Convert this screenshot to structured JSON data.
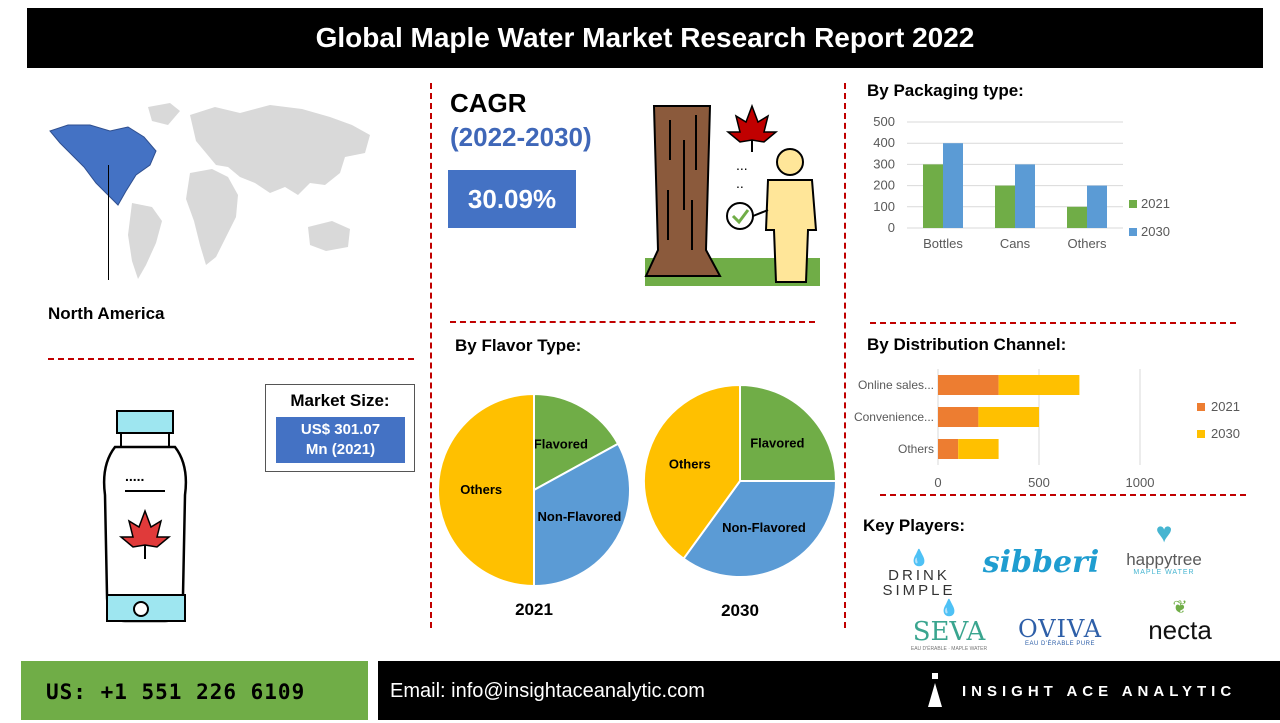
{
  "title": "Global Maple Water Market Research Report 2022",
  "region": {
    "label": "North America"
  },
  "cagr": {
    "title": "CAGR",
    "period": "(2022-2030)",
    "value": "30.09%"
  },
  "market_size": {
    "label": "Market Size:",
    "value_line1": "US$ 301.07",
    "value_line2": "Mn (2021)"
  },
  "sections": {
    "packaging": "By Packaging type:",
    "flavor": "By Flavor Type:",
    "distribution": "By Distribution Channel:",
    "key_players": "Key Players:"
  },
  "colors": {
    "series_2021_bar": "#70ad47",
    "series_2030_bar": "#5b9bd5",
    "dist_2021": "#ed7d31",
    "dist_2030": "#ffc000",
    "pie_others": "#ffc000",
    "pie_flavored": "#70ad47",
    "pie_nonflavored": "#5b9bd5",
    "accent_blue": "#4472c4",
    "divider_red": "#c00000"
  },
  "key_players": [
    {
      "name": "DRINK SIMPLE",
      "icon": "water-drop-icon"
    },
    {
      "name": "sibberi",
      "icon": "script-logo-icon"
    },
    {
      "name": "happytree",
      "tagline": "MAPLE WATER",
      "icon": "heart-tree-icon"
    },
    {
      "name": "SEVA",
      "tagline": "EAU D'ÉRABLE · MAPLE WATER",
      "icon": "leaf-drop-icon"
    },
    {
      "name": "OVIVA",
      "tagline": "EAU D'ÉRABLE PURE",
      "icon": "wave-icon"
    },
    {
      "name": "necta",
      "icon": "leaf-icon"
    }
  ],
  "footer": {
    "phone": "US: +1 551 226 6109",
    "email": "Email: info@insightaceanalytic.com",
    "brand": "INSIGHT ACE ANALYTIC"
  },
  "chart_data": [
    {
      "id": "packaging",
      "type": "bar",
      "categories": [
        "Bottles",
        "Cans",
        "Others"
      ],
      "series": [
        {
          "name": "2021",
          "values": [
            300,
            200,
            100
          ]
        },
        {
          "name": "2030",
          "values": [
            400,
            300,
            200
          ]
        }
      ],
      "ylim": [
        0,
        500
      ],
      "yticks": [
        0,
        100,
        200,
        300,
        400,
        500
      ],
      "legend": "right",
      "grid": true
    },
    {
      "id": "distribution",
      "type": "bar",
      "orientation": "horizontal",
      "stacked": true,
      "categories": [
        "Online sales...",
        "Convenience...",
        "Others"
      ],
      "series": [
        {
          "name": "2021",
          "values": [
            300,
            200,
            100
          ]
        },
        {
          "name": "2030",
          "values": [
            400,
            300,
            200
          ]
        }
      ],
      "xlim": [
        0,
        1000
      ],
      "xticks": [
        0,
        500,
        1000
      ],
      "legend": "right",
      "grid": true
    },
    {
      "id": "flavor_2021",
      "type": "pie",
      "title": "2021",
      "slices": [
        {
          "label": "Flavored",
          "value": 17
        },
        {
          "label": "Non-Flavored",
          "value": 33
        },
        {
          "label": "Others",
          "value": 50
        }
      ]
    },
    {
      "id": "flavor_2030",
      "type": "pie",
      "title": "2030",
      "slices": [
        {
          "label": "Flavored",
          "value": 25
        },
        {
          "label": "Non-Flavored",
          "value": 35
        },
        {
          "label": "Others",
          "value": 40
        }
      ]
    }
  ]
}
